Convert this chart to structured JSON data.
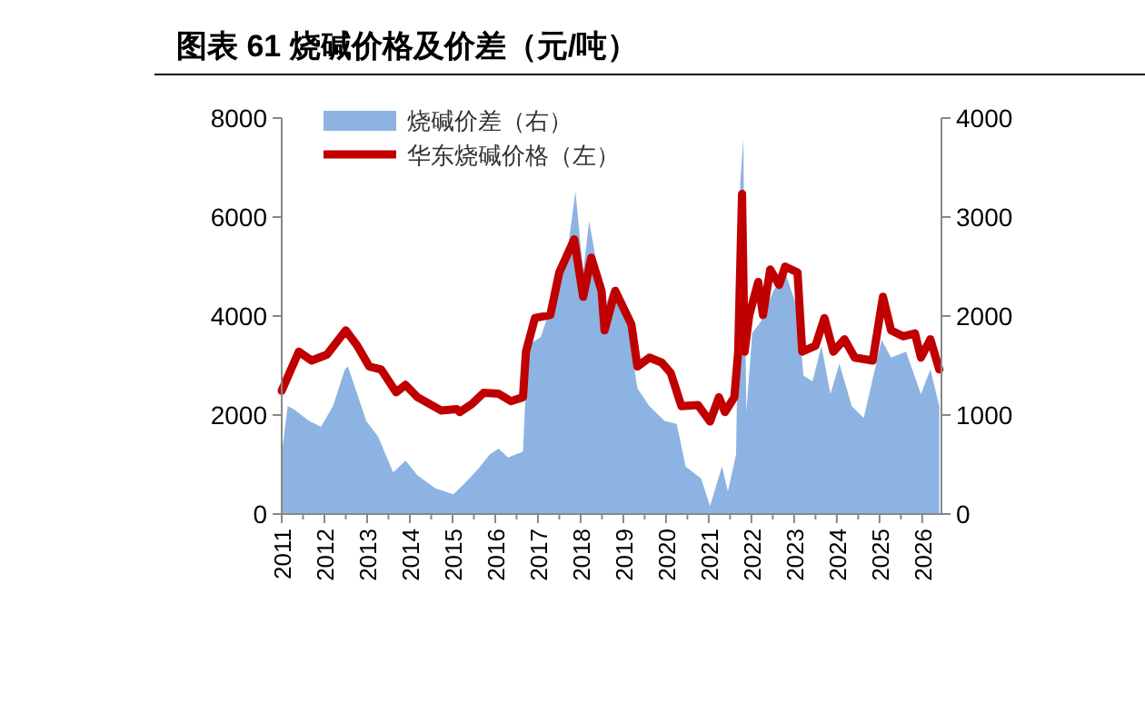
{
  "chart_data": {
    "type": "line",
    "title": "图表 61 烧碱价格及价差（元/吨）",
    "legend": "top",
    "xlim": [
      2011,
      2026.45
    ],
    "xticks": [
      2011,
      2012,
      2013,
      2014,
      2015,
      2016,
      2017,
      2018,
      2019,
      2020,
      2021,
      2022,
      2023,
      2024,
      2025,
      2026
    ],
    "ylim": [
      0,
      8000
    ],
    "yticks": [
      0,
      2000,
      4000,
      6000,
      8000
    ],
    "y2lim": [
      0,
      4000
    ],
    "y2ticks": [
      0,
      1000,
      2000,
      3000,
      4000
    ],
    "series": [
      {
        "name": "烧碱价差（右）",
        "type": "area",
        "axis": "y2",
        "color": "#8db3e2",
        "x": [
          2011.0,
          2011.14,
          2011.28,
          2011.64,
          2011.92,
          2012.2,
          2012.48,
          2012.55,
          2012.77,
          2012.98,
          2013.26,
          2013.61,
          2013.9,
          2014.18,
          2014.6,
          2015.02,
          2015.31,
          2015.59,
          2015.87,
          2016.08,
          2016.3,
          2016.65,
          2016.76,
          2017.07,
          2017.42,
          2017.68,
          2017.88,
          2018.06,
          2018.2,
          2018.56,
          2018.7,
          2019.05,
          2019.33,
          2019.61,
          2019.97,
          2020.25,
          2020.46,
          2020.82,
          2021.03,
          2021.31,
          2021.45,
          2021.64,
          2021.74,
          2021.81,
          2021.88,
          2022.02,
          2022.23,
          2022.51,
          2022.79,
          2023.08,
          2023.22,
          2023.43,
          2023.64,
          2023.85,
          2024.06,
          2024.35,
          2024.63,
          2025.05,
          2025.27,
          2025.62,
          2025.97,
          2026.19,
          2026.4
        ],
        "values": [
          600,
          1090,
          1060,
          940,
          880,
          1090,
          1460,
          1490,
          1210,
          940,
          780,
          420,
          540,
          390,
          260,
          200,
          320,
          450,
          600,
          660,
          570,
          630,
          1700,
          1790,
          2250,
          2620,
          3260,
          2440,
          2960,
          2070,
          2250,
          2070,
          1270,
          1090,
          940,
          910,
          480,
          360,
          80,
          480,
          230,
          600,
          3360,
          3790,
          1030,
          1830,
          1950,
          2250,
          2440,
          2070,
          1400,
          1340,
          1700,
          1210,
          1520,
          1090,
          970,
          1760,
          1580,
          1640,
          1210,
          1460,
          1090
        ]
      },
      {
        "name": "华东烧碱价格（左）",
        "axis": "y",
        "color": "#c00000",
        "x": [
          2011.0,
          2011.4,
          2011.7,
          2012.06,
          2012.5,
          2012.77,
          2013.05,
          2013.33,
          2013.68,
          2013.9,
          2014.18,
          2014.74,
          2015.1,
          2015.17,
          2015.45,
          2015.73,
          2016.08,
          2016.37,
          2016.65,
          2016.72,
          2016.93,
          2017.29,
          2017.5,
          2017.85,
          2018.06,
          2018.25,
          2018.49,
          2018.56,
          2018.81,
          2019.19,
          2019.33,
          2019.61,
          2019.9,
          2020.11,
          2020.36,
          2020.75,
          2021.03,
          2021.24,
          2021.38,
          2021.6,
          2021.69,
          2021.78,
          2021.84,
          2021.95,
          2022.16,
          2022.27,
          2022.44,
          2022.65,
          2022.79,
          2023.08,
          2023.19,
          2023.5,
          2023.71,
          2023.92,
          2024.18,
          2024.42,
          2024.84,
          2025.08,
          2025.27,
          2025.55,
          2025.83,
          2025.97,
          2026.19,
          2026.4
        ],
        "values": [
          2490,
          3280,
          3100,
          3220,
          3710,
          3400,
          2980,
          2920,
          2460,
          2610,
          2360,
          2090,
          2120,
          2060,
          2220,
          2450,
          2430,
          2280,
          2360,
          3280,
          3960,
          4020,
          4880,
          5550,
          4390,
          5180,
          4510,
          3710,
          4510,
          3830,
          2980,
          3160,
          3060,
          2850,
          2180,
          2200,
          1870,
          2360,
          2060,
          2360,
          3280,
          6470,
          3280,
          4020,
          4690,
          4020,
          4940,
          4630,
          5000,
          4880,
          3280,
          3400,
          3960,
          3280,
          3530,
          3160,
          3100,
          4390,
          3710,
          3590,
          3650,
          3160,
          3530,
          2920
        ]
      }
    ]
  }
}
